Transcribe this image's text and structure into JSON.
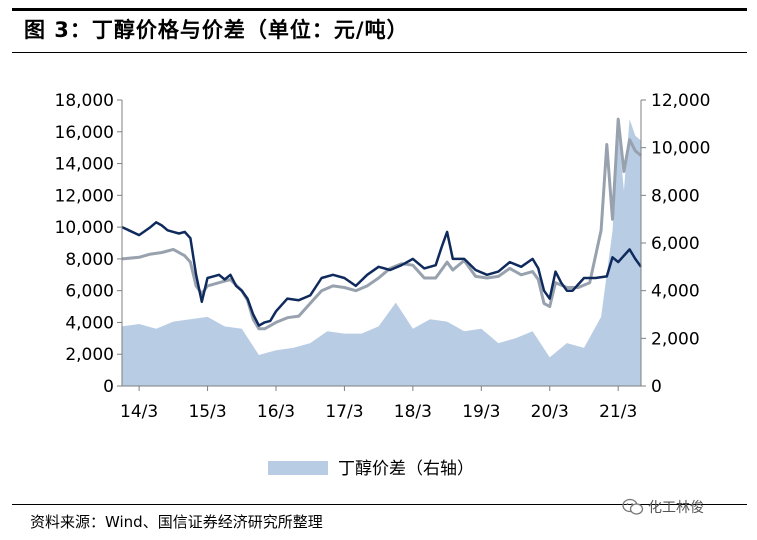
{
  "figure": {
    "title": "图 3：丁醇价格与价差（单位：元/吨）",
    "source": "资料来源：Wind、国信证券经济研究所整理",
    "watermark": "化工林俊",
    "watermark_icon": "wechat-icon"
  },
  "chart_data": {
    "type": "line",
    "x_ticks": [
      "14/3",
      "15/3",
      "16/3",
      "17/3",
      "18/3",
      "19/3",
      "20/3",
      "21/3"
    ],
    "x_range": [
      "2013-12",
      "2021-07"
    ],
    "y_left": {
      "ticks": [
        "0",
        "2,000",
        "4,000",
        "6,000",
        "8,000",
        "10,000",
        "12,000",
        "14,000",
        "16,000",
        "18,000"
      ],
      "range": [
        0,
        18000
      ]
    },
    "y_right": {
      "ticks": [
        "0",
        "2,000",
        "4,000",
        "6,000",
        "8,000",
        "10,000",
        "12,000"
      ],
      "range": [
        0,
        12000
      ]
    },
    "legend": {
      "placement": "bottom-center",
      "entries": [
        "丁醇价差（右轴）"
      ]
    },
    "colors": {
      "price_dark": "#0f2a5c",
      "price_grey": "#98a2ae",
      "spread_fill": "#b8cce4"
    },
    "series": [
      {
        "axis": "left",
        "color": "#0f2a5c",
        "x": [
          "2013-12",
          "2014-03",
          "2014-05",
          "2014-06",
          "2014-07",
          "2014-08",
          "2014-09",
          "2014-10",
          "2014-11",
          "2014-12",
          "2015-01",
          "2015-02",
          "2015-03",
          "2015-04",
          "2015-05",
          "2015-06",
          "2015-07",
          "2015-08",
          "2015-09",
          "2015-10",
          "2015-11",
          "2015-12",
          "2016-01",
          "2016-02",
          "2016-03",
          "2016-05",
          "2016-07",
          "2016-09",
          "2016-11",
          "2017-01",
          "2017-03",
          "2017-05",
          "2017-07",
          "2017-09",
          "2017-11",
          "2018-01",
          "2018-03",
          "2018-05",
          "2018-07",
          "2018-08",
          "2018-09",
          "2018-10",
          "2018-12",
          "2019-02",
          "2019-04",
          "2019-06",
          "2019-08",
          "2019-10",
          "2019-12",
          "2020-01",
          "2020-02",
          "2020-03",
          "2020-04",
          "2020-05",
          "2020-06",
          "2020-07",
          "2020-09",
          "2020-11",
          "2021-01",
          "2021-02",
          "2021-03",
          "2021-04",
          "2021-05",
          "2021-06",
          "2021-07"
        ],
        "values": [
          10000,
          9500,
          10000,
          10300,
          10100,
          9800,
          9700,
          9600,
          9700,
          9300,
          7000,
          5300,
          6800,
          6900,
          7000,
          6700,
          7000,
          6300,
          6000,
          5500,
          4500,
          3800,
          4000,
          4100,
          4700,
          5500,
          5400,
          5700,
          6800,
          7000,
          6800,
          6300,
          7000,
          7500,
          7300,
          7600,
          8000,
          7400,
          7600,
          8700,
          9700,
          8000,
          8000,
          7300,
          7000,
          7200,
          7800,
          7500,
          8000,
          7400,
          6000,
          5500,
          7200,
          6500,
          6000,
          6000,
          6800,
          6800,
          6900,
          8100,
          7800,
          8200,
          8600,
          8000,
          7500
        ]
      },
      {
        "axis": "left",
        "color": "#98a2ae",
        "x": [
          "2013-12",
          "2014-03",
          "2014-05",
          "2014-07",
          "2014-09",
          "2014-11",
          "2014-12",
          "2015-01",
          "2015-02",
          "2015-03",
          "2015-05",
          "2015-07",
          "2015-09",
          "2015-10",
          "2015-11",
          "2015-12",
          "2016-01",
          "2016-03",
          "2016-05",
          "2016-07",
          "2016-09",
          "2016-11",
          "2017-01",
          "2017-03",
          "2017-05",
          "2017-07",
          "2017-09",
          "2017-11",
          "2018-01",
          "2018-03",
          "2018-05",
          "2018-07",
          "2018-09",
          "2018-10",
          "2018-12",
          "2019-02",
          "2019-04",
          "2019-06",
          "2019-08",
          "2019-10",
          "2019-12",
          "2020-01",
          "2020-02",
          "2020-03",
          "2020-04",
          "2020-06",
          "2020-08",
          "2020-10",
          "2020-12",
          "2021-01",
          "2021-02",
          "2021-03",
          "2021-04",
          "2021-05",
          "2021-06",
          "2021-07"
        ],
        "values": [
          8000,
          8100,
          8300,
          8400,
          8600,
          8200,
          7800,
          6300,
          5800,
          6300,
          6500,
          6700,
          6000,
          5400,
          4200,
          3600,
          3600,
          4000,
          4300,
          4400,
          5200,
          6000,
          6300,
          6200,
          6000,
          6300,
          6800,
          7400,
          7700,
          7600,
          6800,
          6800,
          7800,
          7300,
          7900,
          6900,
          6800,
          6900,
          7400,
          7000,
          7200,
          6700,
          5200,
          5000,
          6500,
          6200,
          6200,
          6500,
          9800,
          15200,
          10500,
          16800,
          13500,
          15500,
          14800,
          14500
        ]
      },
      {
        "axis": "right",
        "type": "area",
        "color": "#b8cce4",
        "x": [
          "2013-12",
          "2014-03",
          "2014-06",
          "2014-09",
          "2014-12",
          "2015-03",
          "2015-06",
          "2015-09",
          "2015-12",
          "2016-03",
          "2016-06",
          "2016-09",
          "2016-12",
          "2017-03",
          "2017-06",
          "2017-09",
          "2017-12",
          "2018-03",
          "2018-06",
          "2018-09",
          "2018-12",
          "2019-03",
          "2019-06",
          "2019-09",
          "2019-12",
          "2020-03",
          "2020-06",
          "2020-09",
          "2020-12",
          "2021-02",
          "2021-03",
          "2021-04",
          "2021-05",
          "2021-06",
          "2021-07"
        ],
        "values": [
          2500,
          2600,
          2400,
          2700,
          2800,
          2900,
          2500,
          2400,
          1300,
          1500,
          1600,
          1800,
          2300,
          2200,
          2200,
          2500,
          3500,
          2400,
          2800,
          2700,
          2300,
          2400,
          1800,
          2000,
          2300,
          1200,
          1800,
          1600,
          2900,
          6500,
          10800,
          8200,
          11200,
          10500,
          10300
        ]
      }
    ]
  }
}
